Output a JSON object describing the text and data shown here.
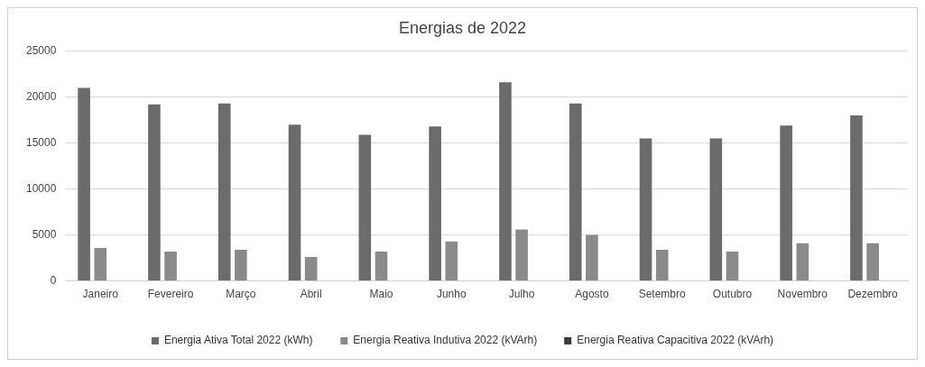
{
  "chart_data": {
    "type": "bar",
    "title": "Energias de 2022",
    "categories": [
      "Janeiro",
      "Fevereiro",
      "Março",
      "Abril",
      "Maio",
      "Junho",
      "Julho",
      "Agosto",
      "Setembro",
      "Outubro",
      "Novembro",
      "Dezembro"
    ],
    "series": [
      {
        "name": "Energia Ativa Total 2022 (kWh)",
        "color": "#6b6b6b",
        "values": [
          21000,
          19200,
          19300,
          17000,
          15900,
          16800,
          21600,
          19300,
          15500,
          15500,
          16900,
          18000
        ]
      },
      {
        "name": "Energia Reativa Indutiva 2022 (kVArh)",
        "color": "#8a8a8a",
        "values": [
          3600,
          3200,
          3400,
          2600,
          3200,
          4300,
          5600,
          5000,
          3400,
          3200,
          4100,
          4100
        ]
      },
      {
        "name": "Energia Reativa Capacitiva 2022 (kVArh)",
        "color": "#3a3a3a",
        "values": [
          0,
          0,
          0,
          0,
          0,
          0,
          0,
          0,
          0,
          0,
          0,
          0
        ]
      }
    ],
    "ylim": [
      0,
      25000
    ],
    "yticks": [
      0,
      5000,
      10000,
      15000,
      20000,
      25000
    ],
    "grid": "y",
    "legend": "bottom"
  }
}
